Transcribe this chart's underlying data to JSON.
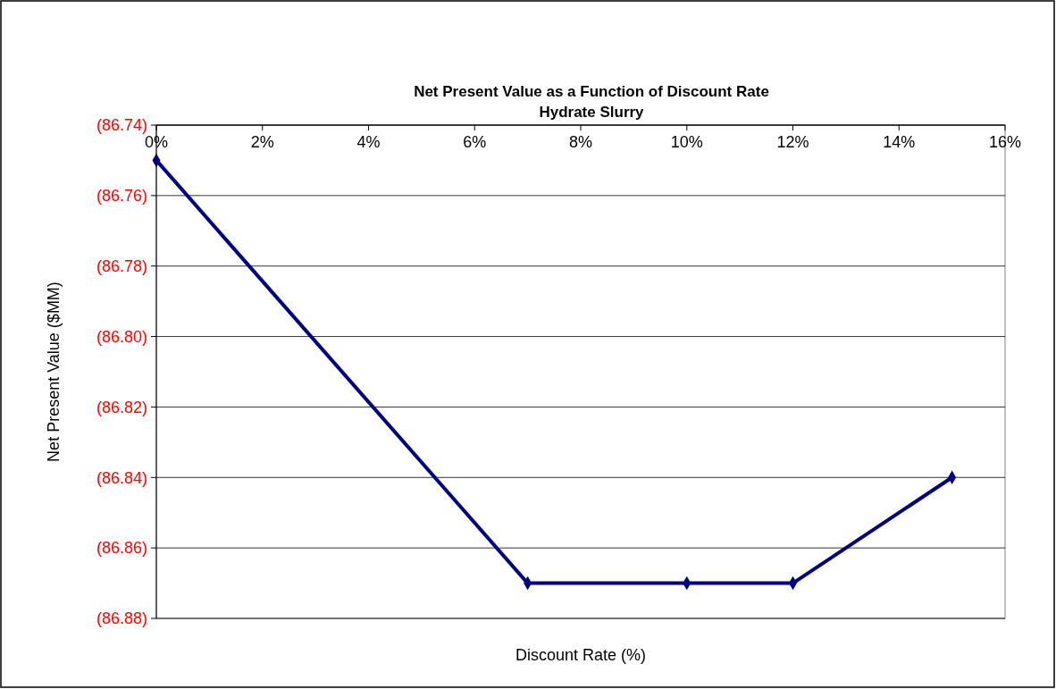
{
  "chart_data": {
    "type": "line",
    "title": "Net Present Value as a Function of Discount Rate",
    "subtitle": "Hydrate Slurry",
    "xlabel": "Discount Rate (%)",
    "ylabel": "Net Present Value ($MM)",
    "x": [
      0,
      7,
      10,
      12,
      15
    ],
    "series": [
      {
        "color": "#000080",
        "values": [
          -86.75,
          -86.87,
          -86.87,
          -86.87,
          -86.84
        ]
      }
    ],
    "xlim": [
      0,
      16
    ],
    "xticks": [
      {
        "value": 0,
        "label": "0%"
      },
      {
        "value": 2,
        "label": "2%"
      },
      {
        "value": 4,
        "label": "4%"
      },
      {
        "value": 6,
        "label": "6%"
      },
      {
        "value": 8,
        "label": "8%"
      },
      {
        "value": 10,
        "label": "10%"
      },
      {
        "value": 12,
        "label": "12%"
      },
      {
        "value": 14,
        "label": "14%"
      },
      {
        "value": 16,
        "label": "16%"
      }
    ],
    "ylim": [
      -86.88,
      -86.74
    ],
    "yticks": [
      {
        "value": -86.88,
        "label": "(86.88)"
      },
      {
        "value": -86.86,
        "label": "(86.86)"
      },
      {
        "value": -86.84,
        "label": "(86.84)"
      },
      {
        "value": -86.82,
        "label": "(86.82)"
      },
      {
        "value": -86.8,
        "label": "(86.80)"
      },
      {
        "value": -86.78,
        "label": "(86.78)"
      },
      {
        "value": -86.76,
        "label": "(86.76)"
      },
      {
        "value": -86.74,
        "label": "(86.74)"
      }
    ],
    "grid": "y",
    "marker": "diamond",
    "line_style": "solid"
  }
}
